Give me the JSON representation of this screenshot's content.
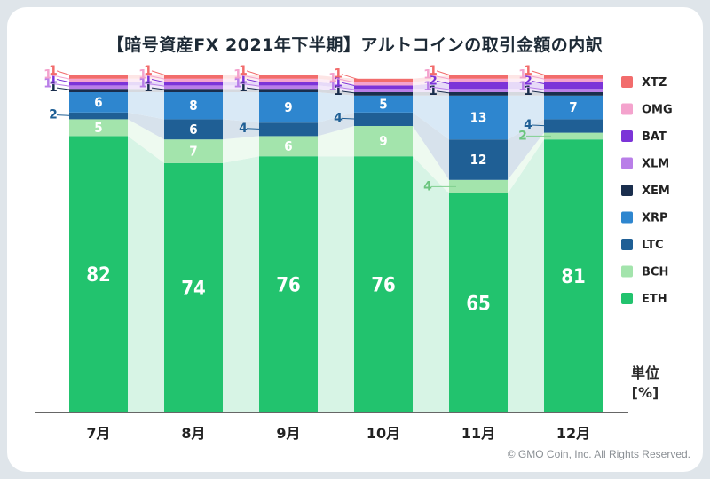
{
  "title": "【暗号資産FX 2021年下半期】アルトコインの取引金額の内訳",
  "unit_label": "単位",
  "unit_value": "[%]",
  "copyright": "© GMO Coin, Inc. All Rights Reserved.",
  "chart_data": {
    "type": "bar",
    "stacked": true,
    "categories": [
      "7月",
      "8月",
      "9月",
      "10月",
      "11月",
      "12月"
    ],
    "series": [
      {
        "name": "ETH",
        "color": "#22c36e",
        "values": [
          82,
          74,
          76,
          76,
          65,
          81
        ]
      },
      {
        "name": "BCH",
        "color": "#a3e4ac",
        "values": [
          5,
          7,
          6,
          9,
          4,
          2
        ]
      },
      {
        "name": "LTC",
        "color": "#1f5f95",
        "values": [
          2,
          6,
          4,
          4,
          12,
          4
        ]
      },
      {
        "name": "XRP",
        "color": "#2e86cf",
        "values": [
          6,
          8,
          9,
          5,
          13,
          7
        ]
      },
      {
        "name": "XEM",
        "color": "#1a2e4d",
        "values": [
          1,
          1,
          1,
          1,
          1,
          1
        ]
      },
      {
        "name": "XLM",
        "color": "#b97ee8",
        "values": [
          1,
          1,
          1,
          1,
          1,
          1
        ]
      },
      {
        "name": "BAT",
        "color": "#7c34d8",
        "values": [
          1,
          1,
          1,
          1,
          2,
          2
        ]
      },
      {
        "name": "OMG",
        "color": "#f4a3cd",
        "values": [
          1,
          1,
          1,
          1,
          1,
          1
        ]
      },
      {
        "name": "XTZ",
        "color": "#f26c6c",
        "values": [
          1,
          1,
          1,
          1,
          1,
          1
        ]
      }
    ],
    "legend_order": [
      "XTZ",
      "OMG",
      "BAT",
      "XLM",
      "XEM",
      "XRP",
      "LTC",
      "BCH",
      "ETH"
    ],
    "legend_position": "right",
    "ylim": [
      0,
      100
    ]
  }
}
